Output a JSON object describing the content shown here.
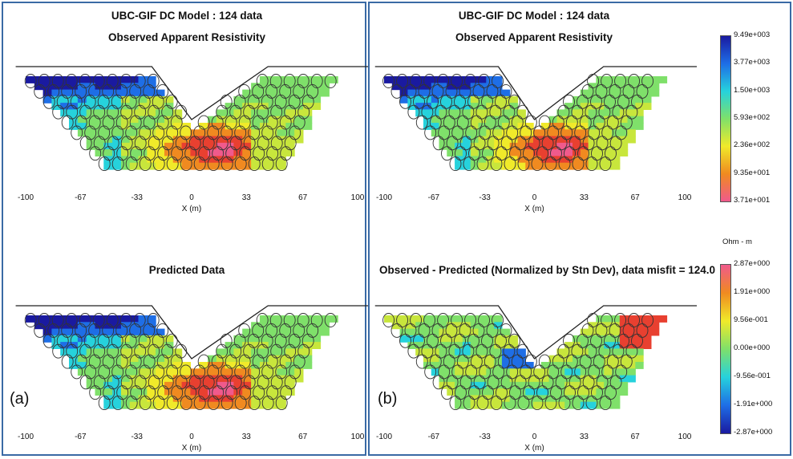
{
  "panels": {
    "a_label": "(a)",
    "b_label": "(b)"
  },
  "titles": {
    "main_line1": "UBC-GIF DC Model : 124 data",
    "main_line2": "Observed Apparent Resistivity",
    "predicted": "Predicted Data",
    "misfit": "Observed - Predicted (Normalized by Stn Dev), data misfit = 124.0"
  },
  "axis": {
    "xlabel": "X (m)",
    "xticks": [
      "-100",
      "-67",
      "-33",
      "0",
      "33",
      "67",
      "100"
    ]
  },
  "colorbar_resistivity": {
    "labels": [
      "9.49e+003",
      "3.77e+003",
      "1.50e+003",
      "5.93e+002",
      "2.36e+002",
      "9.35e+001",
      "3.71e+001"
    ],
    "unit": "Ohm - m",
    "colors": [
      "#1a1aa0",
      "#1e6ee6",
      "#26d2dc",
      "#7fe06a",
      "#f0ea2a",
      "#f08a20",
      "#f05a8c"
    ]
  },
  "colorbar_misfit": {
    "labels": [
      "2.87e+000",
      "1.91e+000",
      "9.56e-001",
      "0.00e+000",
      "-9.56e-001",
      "-1.91e+000",
      "-2.87e+000"
    ],
    "colors": [
      "#f05a8c",
      "#f08a20",
      "#f0ea2a",
      "#7fe06a",
      "#26d2dc",
      "#1e6ee6",
      "#1a1aa0"
    ]
  },
  "chart_data": [
    {
      "type": "heatmap",
      "title": "UBC-GIF DC Model : 124 data",
      "subtitle": "Observed Apparent Resistivity",
      "xlabel": "X (m)",
      "xlim": [
        -100,
        100
      ],
      "xticks": [
        -100,
        -67,
        -33,
        0,
        33,
        67,
        100
      ],
      "value_range": [
        37.1,
        9490
      ],
      "n_data": 124
    },
    {
      "type": "heatmap",
      "title": "Predicted Data",
      "xlabel": "X (m)",
      "xlim": [
        -100,
        100
      ],
      "xticks": [
        -100,
        -67,
        -33,
        0,
        33,
        67,
        100
      ],
      "value_range": [
        37.1,
        9490
      ]
    },
    {
      "type": "heatmap",
      "title": "UBC-GIF DC Model : 124 data",
      "subtitle": "Observed Apparent Resistivity",
      "xlabel": "X (m)",
      "xlim": [
        -100,
        100
      ],
      "xticks": [
        -100,
        -67,
        -33,
        0,
        33,
        67,
        100
      ],
      "value_range": [
        37.1,
        9490
      ],
      "n_data": 124
    },
    {
      "type": "heatmap",
      "title": "Observed - Predicted (Normalized by Stn Dev), data misfit = 124.0",
      "xlabel": "X (m)",
      "xlim": [
        -100,
        100
      ],
      "xticks": [
        -100,
        -67,
        -33,
        0,
        33,
        67,
        100
      ],
      "value_range": [
        -2.87,
        2.87
      ],
      "data_misfit": 124.0
    }
  ]
}
